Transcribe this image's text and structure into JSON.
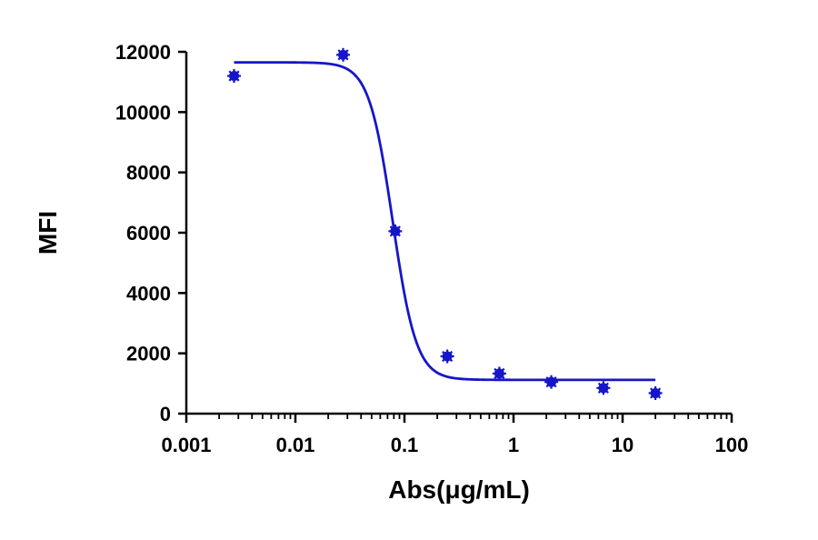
{
  "chart_data": {
    "type": "scatter",
    "title": "",
    "xlabel": "Abs(μg/mL)",
    "ylabel": "MFI",
    "x_scale": "log",
    "xlim": [
      0.001,
      100
    ],
    "ylim": [
      0,
      12000
    ],
    "x_ticks": [
      "0.001",
      "0.01",
      "0.1",
      "1",
      "10",
      "100"
    ],
    "y_ticks": [
      "0",
      "2000",
      "4000",
      "6000",
      "8000",
      "10000",
      "12000"
    ],
    "grid": false,
    "legend": "none",
    "color": "#1616c8",
    "series": [
      {
        "points": [
          {
            "x": 0.00274,
            "y": 11200
          },
          {
            "x": 0.0274,
            "y": 11900
          },
          {
            "x": 0.0823,
            "y": 6050
          },
          {
            "x": 0.247,
            "y": 1900
          },
          {
            "x": 0.741,
            "y": 1330
          },
          {
            "x": 2.22,
            "y": 1050
          },
          {
            "x": 6.67,
            "y": 850
          },
          {
            "x": 20,
            "y": 680
          }
        ],
        "fit": {
          "type": "4PL",
          "top": 11650,
          "bottom": 1120,
          "ec50": 0.078,
          "hill": 4.0,
          "x_range": [
            0.00274,
            20
          ]
        }
      }
    ]
  }
}
